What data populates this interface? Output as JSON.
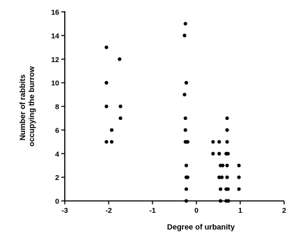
{
  "chart_data": {
    "type": "scatter",
    "title": "",
    "xlabel": "Degree of urbanity",
    "ylabel_lines": [
      "Number of rabbits",
      "occupying the burrow"
    ],
    "xlim": [
      -3,
      2
    ],
    "ylim": [
      0,
      16
    ],
    "x_ticks": [
      -3,
      -2,
      -1,
      0,
      1,
      2
    ],
    "y_ticks": [
      0,
      2,
      4,
      6,
      8,
      10,
      12,
      14,
      16
    ],
    "x_tick_labels": [
      "-3",
      "-2",
      "-1",
      "0",
      "1",
      "2"
    ],
    "y_tick_labels": [
      "0",
      "2",
      "4",
      "6",
      "8",
      "10",
      "12",
      "14",
      "16"
    ],
    "grid": false,
    "marker_color": "#000000",
    "series": [
      {
        "points": [
          [
            -2.05,
            13
          ],
          [
            -2.05,
            10
          ],
          [
            -2.05,
            8
          ],
          [
            -2.05,
            5
          ],
          [
            -1.93,
            6
          ],
          [
            -1.93,
            5
          ],
          [
            -1.75,
            12
          ],
          [
            -1.73,
            8
          ],
          [
            -1.73,
            7
          ],
          [
            -0.25,
            15
          ],
          [
            -0.27,
            14
          ],
          [
            -0.23,
            10
          ],
          [
            -0.27,
            9
          ],
          [
            -0.25,
            7
          ],
          [
            -0.25,
            6
          ],
          [
            -0.25,
            5
          ],
          [
            -0.22,
            5
          ],
          [
            -0.2,
            5
          ],
          [
            -0.23,
            3
          ],
          [
            -0.23,
            2
          ],
          [
            -0.2,
            2
          ],
          [
            -0.23,
            1
          ],
          [
            -0.23,
            0
          ],
          [
            0.38,
            5
          ],
          [
            0.52,
            5
          ],
          [
            0.38,
            4
          ],
          [
            0.52,
            4
          ],
          [
            0.55,
            3
          ],
          [
            0.6,
            3
          ],
          [
            0.52,
            2
          ],
          [
            0.58,
            2
          ],
          [
            0.55,
            1
          ],
          [
            0.55,
            0
          ],
          [
            0.7,
            7
          ],
          [
            0.7,
            6
          ],
          [
            0.7,
            5
          ],
          [
            0.68,
            4
          ],
          [
            0.72,
            4
          ],
          [
            0.7,
            3
          ],
          [
            0.7,
            2
          ],
          [
            0.68,
            1
          ],
          [
            0.72,
            1
          ],
          [
            0.68,
            0
          ],
          [
            0.73,
            0
          ],
          [
            0.97,
            3
          ],
          [
            0.97,
            2
          ],
          [
            0.97,
            1
          ]
        ]
      }
    ]
  }
}
